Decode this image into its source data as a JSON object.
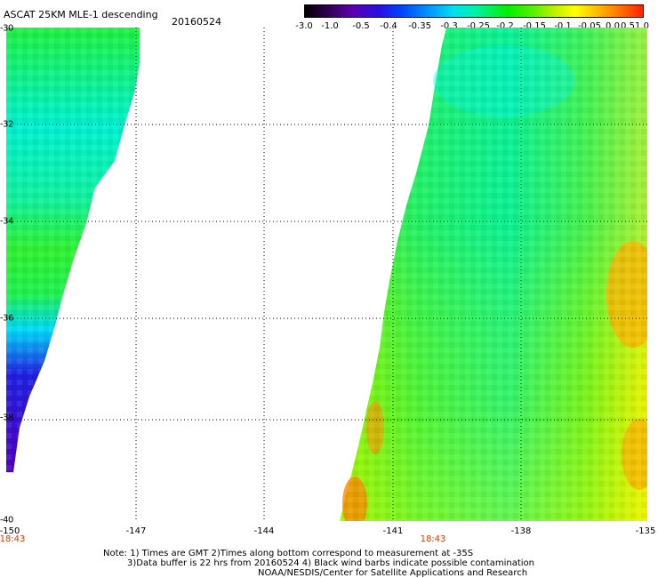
{
  "header": {
    "title": "ASCAT 25KM MLE-1 descending",
    "date": "20160524"
  },
  "colorbar": {
    "ticks": [
      "-3.0",
      "-1.0",
      "-0.5",
      "-0.4",
      "-0.35",
      "-0.3",
      "-0.25",
      "-0.2",
      "-0.15",
      "-0.1",
      "-0.05",
      "0.0",
      "0.5",
      "1.0"
    ]
  },
  "map": {
    "lat_labels": [
      "-30",
      "-32",
      "-34",
      "-36",
      "-38",
      "-40"
    ],
    "lon_labels": [
      "-150",
      "-147",
      "-144",
      "-141",
      "-138",
      "-135"
    ],
    "time_labels": [
      "18:43",
      "18:43"
    ],
    "lat_range": [
      -40,
      -30
    ],
    "lon_range": [
      -150,
      -135
    ],
    "grid": true,
    "swaths": [
      {
        "name": "west",
        "dominant_range": "-0.35 to -0.15",
        "low_values_near_south_edge": "-1.0 to -0.5"
      },
      {
        "name": "east",
        "dominant_range": "-0.25 to -0.05",
        "high_values_near_east_edge": "-0.05 to 0.0"
      }
    ]
  },
  "footer": {
    "note_line1": "Note: 1) Times are GMT 2)Times along bottom correspond to measurement at -35S",
    "note_line2": "3)Data buffer is 22 hrs from 20160524 4) Black wind barbs indicate possible contamination",
    "note_line3": "NOAA/NESDIS/Center for Satellite Applications and Research"
  },
  "colors": {
    "grid": "#000000",
    "time_label": "#d23c00"
  }
}
